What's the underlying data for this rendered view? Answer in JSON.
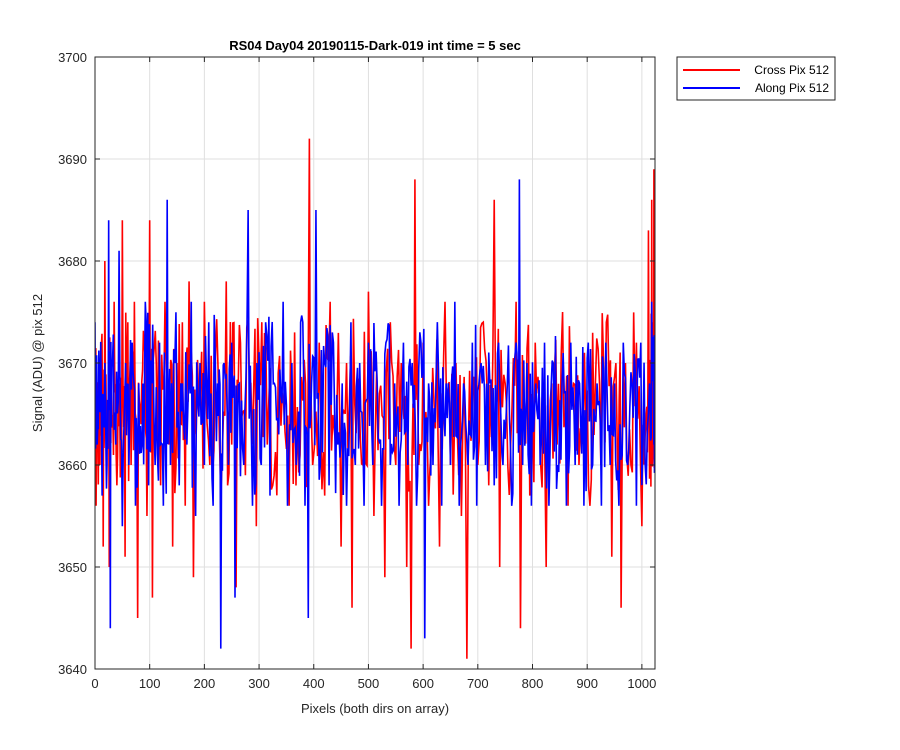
{
  "chart_data": {
    "type": "line",
    "title": "RS04 Day04 20190115-Dark-019 int time = 5 sec",
    "xlabel": "Pixels (both dirs on array)",
    "ylabel": "Signal (ADU) @ pix 512",
    "xlim": [
      0,
      1024
    ],
    "ylim": [
      3640,
      3700
    ],
    "xticks": [
      0,
      100,
      200,
      300,
      400,
      500,
      600,
      700,
      800,
      900,
      1000
    ],
    "yticks": [
      3640,
      3650,
      3660,
      3670,
      3680,
      3690,
      3700
    ],
    "grid": true,
    "legend_position": "outside-top-right",
    "noise_mean_approx": 3666,
    "series": [
      {
        "name": "Cross Pix 512",
        "color": "#ff0000",
        "points": [
          [
            0,
            3665
          ],
          [
            2,
            3656
          ],
          [
            5,
            3668
          ],
          [
            9,
            3660
          ],
          [
            12,
            3672
          ],
          [
            15,
            3652
          ],
          [
            18,
            3680
          ],
          [
            22,
            3662
          ],
          [
            26,
            3650
          ],
          [
            30,
            3670
          ],
          [
            35,
            3676
          ],
          [
            40,
            3658
          ],
          [
            45,
            3668
          ],
          [
            50,
            3684
          ],
          [
            55,
            3651
          ],
          [
            60,
            3674
          ],
          [
            66,
            3660
          ],
          [
            72,
            3676
          ],
          [
            78,
            3645
          ],
          [
            84,
            3664
          ],
          [
            90,
            3672
          ],
          [
            95,
            3655
          ],
          [
            100,
            3684
          ],
          [
            105,
            3647
          ],
          [
            112,
            3670
          ],
          [
            120,
            3658
          ],
          [
            128,
            3676
          ],
          [
            135,
            3662
          ],
          [
            142,
            3652
          ],
          [
            150,
            3670
          ],
          [
            158,
            3664
          ],
          [
            165,
            3656
          ],
          [
            172,
            3678
          ],
          [
            180,
            3649
          ],
          [
            190,
            3666
          ],
          [
            200,
            3676
          ],
          [
            210,
            3660
          ],
          [
            220,
            3670
          ],
          [
            230,
            3657
          ],
          [
            240,
            3678
          ],
          [
            250,
            3662
          ],
          [
            258,
            3648
          ],
          [
            266,
            3672
          ],
          [
            275,
            3659
          ],
          [
            285,
            3668
          ],
          [
            295,
            3654
          ],
          [
            305,
            3674
          ],
          [
            315,
            3662
          ],
          [
            325,
            3658
          ],
          [
            335,
            3669
          ],
          [
            345,
            3666
          ],
          [
            355,
            3656
          ],
          [
            365,
            3673
          ],
          [
            375,
            3661
          ],
          [
            385,
            3668
          ],
          [
            392,
            3692
          ],
          [
            398,
            3660
          ],
          [
            410,
            3672
          ],
          [
            420,
            3657
          ],
          [
            430,
            3676
          ],
          [
            440,
            3662
          ],
          [
            450,
            3652
          ],
          [
            460,
            3670
          ],
          [
            470,
            3646
          ],
          [
            480,
            3668
          ],
          [
            490,
            3660
          ],
          [
            500,
            3677
          ],
          [
            510,
            3655
          ],
          [
            520,
            3667
          ],
          [
            530,
            3649
          ],
          [
            540,
            3674
          ],
          [
            550,
            3660
          ],
          [
            560,
            3670
          ],
          [
            570,
            3650
          ],
          [
            578,
            3642
          ],
          [
            585,
            3688
          ],
          [
            592,
            3660
          ],
          [
            600,
            3672
          ],
          [
            610,
            3656
          ],
          [
            620,
            3666
          ],
          [
            630,
            3652
          ],
          [
            640,
            3676
          ],
          [
            650,
            3660
          ],
          [
            660,
            3670
          ],
          [
            670,
            3655
          ],
          [
            680,
            3641
          ],
          [
            690,
            3668
          ],
          [
            700,
            3660
          ],
          [
            710,
            3674
          ],
          [
            720,
            3658
          ],
          [
            730,
            3686
          ],
          [
            740,
            3650
          ],
          [
            750,
            3668
          ],
          [
            760,
            3662
          ],
          [
            770,
            3676
          ],
          [
            778,
            3644
          ],
          [
            785,
            3666
          ],
          [
            795,
            3657
          ],
          [
            805,
            3672
          ],
          [
            815,
            3660
          ],
          [
            825,
            3650
          ],
          [
            835,
            3668
          ],
          [
            845,
            3662
          ],
          [
            855,
            3675
          ],
          [
            865,
            3656
          ],
          [
            875,
            3668
          ],
          [
            885,
            3660
          ],
          [
            895,
            3671
          ],
          [
            905,
            3656
          ],
          [
            915,
            3668
          ],
          [
            925,
            3660
          ],
          [
            935,
            3674
          ],
          [
            945,
            3651
          ],
          [
            955,
            3662
          ],
          [
            962,
            3646
          ],
          [
            970,
            3670
          ],
          [
            980,
            3660
          ],
          [
            990,
            3672
          ],
          [
            1000,
            3654
          ],
          [
            1008,
            3665
          ],
          [
            1012,
            3683
          ],
          [
            1016,
            3668
          ],
          [
            1018,
            3686
          ],
          [
            1020,
            3674
          ],
          [
            1022,
            3689
          ],
          [
            1024,
            3678
          ]
        ]
      },
      {
        "name": "Along Pix 512",
        "color": "#0000ff",
        "points": [
          [
            0,
            3674
          ],
          [
            4,
            3662
          ],
          [
            8,
            3668
          ],
          [
            13,
            3657
          ],
          [
            18,
            3670
          ],
          [
            22,
            3660
          ],
          [
            25,
            3684
          ],
          [
            28,
            3644
          ],
          [
            32,
            3670
          ],
          [
            38,
            3662
          ],
          [
            44,
            3681
          ],
          [
            50,
            3654
          ],
          [
            56,
            3670
          ],
          [
            62,
            3660
          ],
          [
            68,
            3672
          ],
          [
            74,
            3656
          ],
          [
            80,
            3668
          ],
          [
            86,
            3662
          ],
          [
            92,
            3676
          ],
          [
            98,
            3658
          ],
          [
            104,
            3668
          ],
          [
            110,
            3660
          ],
          [
            118,
            3672
          ],
          [
            125,
            3656
          ],
          [
            132,
            3686
          ],
          [
            138,
            3660
          ],
          [
            146,
            3670
          ],
          [
            154,
            3658
          ],
          [
            160,
            3668
          ],
          [
            168,
            3662
          ],
          [
            176,
            3676
          ],
          [
            184,
            3655
          ],
          [
            192,
            3670
          ],
          [
            200,
            3660
          ],
          [
            208,
            3674
          ],
          [
            216,
            3656
          ],
          [
            224,
            3668
          ],
          [
            230,
            3642
          ],
          [
            236,
            3670
          ],
          [
            244,
            3660
          ],
          [
            250,
            3672
          ],
          [
            256,
            3647
          ],
          [
            264,
            3668
          ],
          [
            272,
            3660
          ],
          [
            280,
            3685
          ],
          [
            288,
            3656
          ],
          [
            296,
            3670
          ],
          [
            304,
            3660
          ],
          [
            312,
            3674
          ],
          [
            320,
            3657
          ],
          [
            328,
            3668
          ],
          [
            336,
            3663
          ],
          [
            344,
            3676
          ],
          [
            352,
            3656
          ],
          [
            360,
            3670
          ],
          [
            368,
            3660
          ],
          [
            376,
            3674
          ],
          [
            384,
            3656
          ],
          [
            390,
            3645
          ],
          [
            396,
            3668
          ],
          [
            404,
            3685
          ],
          [
            412,
            3660
          ],
          [
            420,
            3670
          ],
          [
            428,
            3658
          ],
          [
            436,
            3672
          ],
          [
            444,
            3662
          ],
          [
            452,
            3668
          ],
          [
            460,
            3656
          ],
          [
            468,
            3674
          ],
          [
            476,
            3660
          ],
          [
            484,
            3670
          ],
          [
            492,
            3656
          ],
          [
            500,
            3672
          ],
          [
            508,
            3660
          ],
          [
            516,
            3668
          ],
          [
            524,
            3656
          ],
          [
            532,
            3672
          ],
          [
            540,
            3660
          ],
          [
            548,
            3668
          ],
          [
            556,
            3656
          ],
          [
            564,
            3672
          ],
          [
            572,
            3660
          ],
          [
            580,
            3670
          ],
          [
            588,
            3656
          ],
          [
            596,
            3672
          ],
          [
            603,
            3643
          ],
          [
            610,
            3668
          ],
          [
            618,
            3660
          ],
          [
            626,
            3674
          ],
          [
            634,
            3656
          ],
          [
            642,
            3668
          ],
          [
            650,
            3660
          ],
          [
            658,
            3676
          ],
          [
            666,
            3656
          ],
          [
            674,
            3668
          ],
          [
            682,
            3660
          ],
          [
            690,
            3672
          ],
          [
            698,
            3656
          ],
          [
            706,
            3670
          ],
          [
            714,
            3660
          ],
          [
            722,
            3668
          ],
          [
            730,
            3658
          ],
          [
            738,
            3672
          ],
          [
            746,
            3660
          ],
          [
            754,
            3668
          ],
          [
            762,
            3656
          ],
          [
            770,
            3672
          ],
          [
            776,
            3688
          ],
          [
            782,
            3660
          ],
          [
            790,
            3670
          ],
          [
            798,
            3656
          ],
          [
            806,
            3668
          ],
          [
            814,
            3660
          ],
          [
            822,
            3672
          ],
          [
            830,
            3656
          ],
          [
            838,
            3670
          ],
          [
            846,
            3660
          ],
          [
            854,
            3668
          ],
          [
            862,
            3656
          ],
          [
            870,
            3672
          ],
          [
            878,
            3660
          ],
          [
            886,
            3668
          ],
          [
            894,
            3656
          ],
          [
            902,
            3672
          ],
          [
            910,
            3660
          ],
          [
            918,
            3668
          ],
          [
            926,
            3656
          ],
          [
            934,
            3672
          ],
          [
            942,
            3660
          ],
          [
            950,
            3668
          ],
          [
            958,
            3656
          ],
          [
            966,
            3672
          ],
          [
            974,
            3660
          ],
          [
            982,
            3668
          ],
          [
            990,
            3656
          ],
          [
            998,
            3672
          ],
          [
            1006,
            3660
          ],
          [
            1014,
            3668
          ],
          [
            1018,
            3676
          ],
          [
            1022,
            3662
          ],
          [
            1024,
            3670
          ]
        ]
      }
    ]
  }
}
